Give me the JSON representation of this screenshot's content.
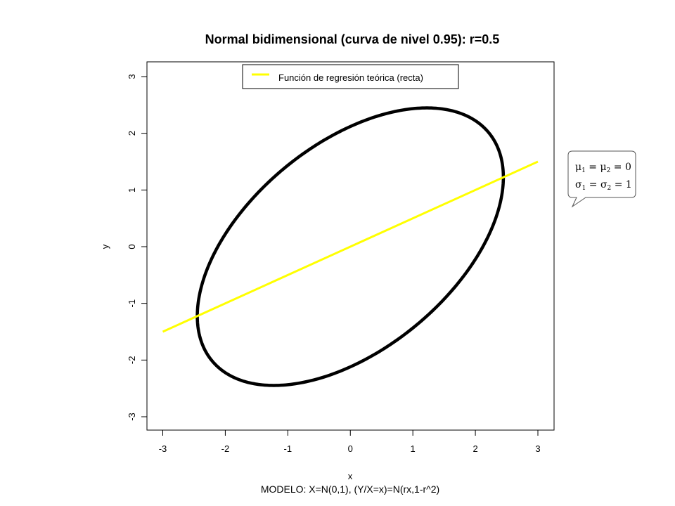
{
  "chart_data": {
    "type": "line",
    "title": "Normal bidimensional (curva de nivel 0.95): r=0.5",
    "xlabel": "x",
    "ylabel": "y",
    "xlim": [
      -3,
      3
    ],
    "ylim": [
      -3,
      3
    ],
    "x_ticks": [
      -3,
      -2,
      -1,
      0,
      1,
      2,
      3
    ],
    "y_ticks": [
      -3,
      -2,
      -1,
      0,
      1,
      2,
      3
    ],
    "x_tick_labels": [
      "-3",
      "-2",
      "-1",
      "0",
      "1",
      "2",
      "3"
    ],
    "y_tick_labels": [
      "-3",
      "-2",
      "-1",
      "0",
      "1",
      "2",
      "3"
    ],
    "grid": false,
    "legend_position": "top-center",
    "legend_entries": [
      "Función de regresión teórica (recta)"
    ],
    "series": [
      {
        "kind": "contour-ellipse",
        "color": "#000000",
        "r": 0.5,
        "level": 0.95,
        "mu": [
          0,
          0
        ],
        "sigma": [
          1,
          1
        ]
      },
      {
        "name": "Función de regresión teórica (recta)",
        "kind": "regression-line",
        "color": "#ffff00",
        "x": [
          -3,
          3
        ],
        "y": [
          -1.5,
          1.5
        ]
      }
    ],
    "annotation": {
      "line1": {
        "lhs": "μ",
        "lhs_sub": "1",
        "mid": "μ",
        "mid_sub": "2",
        "rhs": "0"
      },
      "line2": {
        "lhs": "σ",
        "lhs_sub": "1",
        "mid": "σ",
        "mid_sub": "2",
        "rhs": "1"
      },
      "eq": "="
    },
    "footer": "MODELO: X=N(0,1), (Y/X=x)=N(rx,1-r^2)"
  }
}
